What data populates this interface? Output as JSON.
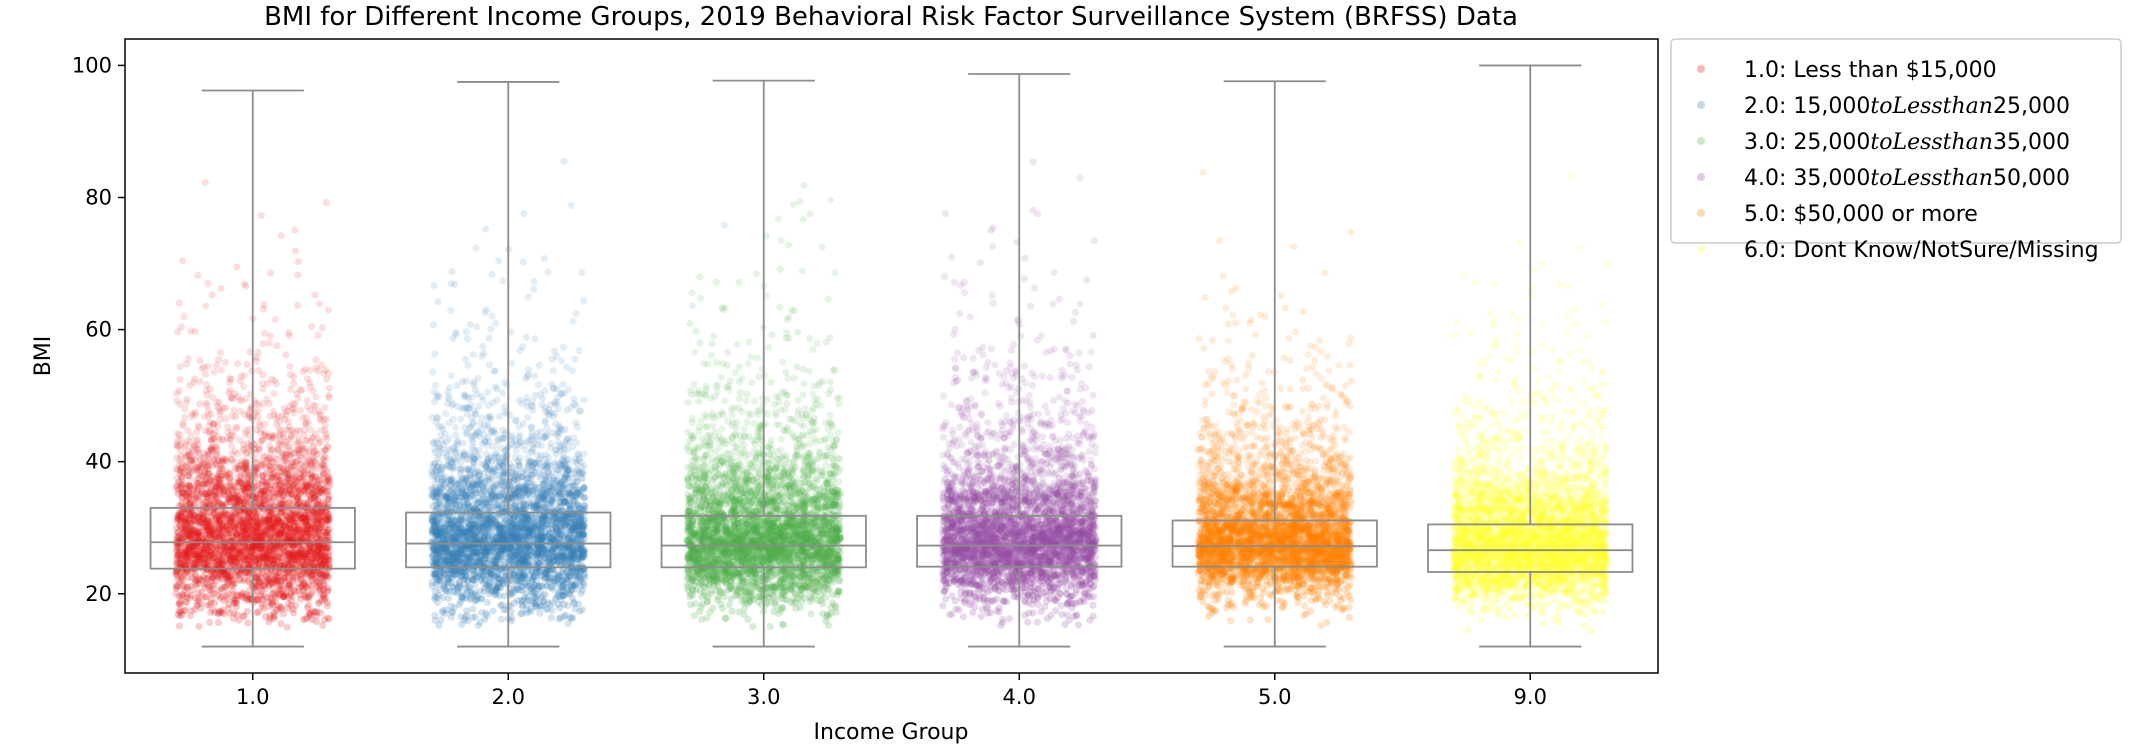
{
  "chart_data": {
    "type": "box-strip",
    "title": "BMI for Different Income Groups, 2019 Behavioral Risk Factor Surveillance System (BRFSS) Data",
    "xlabel": "Income Group",
    "ylabel": "BMI",
    "ylim": [
      8,
      104
    ],
    "yticks": [
      20,
      40,
      60,
      80,
      100
    ],
    "categories": [
      "1.0",
      "2.0",
      "3.0",
      "4.0",
      "5.0",
      "9.0"
    ],
    "boxes": [
      {
        "category": "1.0",
        "whisker_low": 12.0,
        "q1": 23.8,
        "median": 27.8,
        "q3": 33.0,
        "whisker_high": 96.2
      },
      {
        "category": "2.0",
        "whisker_low": 12.0,
        "q1": 24.0,
        "median": 27.6,
        "q3": 32.3,
        "whisker_high": 97.5
      },
      {
        "category": "3.0",
        "whisker_low": 12.0,
        "q1": 24.0,
        "median": 27.3,
        "q3": 31.8,
        "whisker_high": 97.7
      },
      {
        "category": "4.0",
        "whisker_low": 12.0,
        "q1": 24.1,
        "median": 27.3,
        "q3": 31.8,
        "whisker_high": 98.7
      },
      {
        "category": "5.0",
        "whisker_low": 12.0,
        "q1": 24.1,
        "median": 27.2,
        "q3": 31.1,
        "whisker_high": 97.6
      },
      {
        "category": "9.0",
        "whisker_low": 12.0,
        "q1": 23.3,
        "median": 26.6,
        "q3": 30.5,
        "whisker_high": 100.0
      }
    ],
    "series": [
      {
        "name": "1.0: Less than $15,000",
        "category": "1.0",
        "color": "#e41a1c"
      },
      {
        "name": "2.0: $15,000 to Less than $25,000",
        "category": "2.0",
        "color": "#377eb8"
      },
      {
        "name": "3.0: $25,000 to Less than $35,000",
        "category": "3.0",
        "color": "#4daf4a"
      },
      {
        "name": "4.0: $35,000 to Less than $50,000",
        "category": "4.0",
        "color": "#984ea3"
      },
      {
        "name": "5.0: $50,000 or more",
        "category": "5.0",
        "color": "#ff7f00"
      },
      {
        "name": "6.0: Dont Know/NotSure/Missing",
        "category": "9.0",
        "color": "#ffff33"
      }
    ],
    "legend": {
      "position": "outside-right",
      "entries": [
        {
          "prefix": "1.0: Less than $15,000",
          "italic": "",
          "suffix": ""
        },
        {
          "prefix": "2.0: 15,000",
          "italic": "toLessthan",
          "suffix": "25,000"
        },
        {
          "prefix": "3.0: 25,000",
          "italic": "toLessthan",
          "suffix": "35,000"
        },
        {
          "prefix": "4.0: 35,000",
          "italic": "toLessthan",
          "suffix": "50,000"
        },
        {
          "prefix": "5.0: $50,000 or more",
          "italic": "",
          "suffix": ""
        },
        {
          "prefix": "6.0: Dont Know/NotSure/Missing",
          "italic": "",
          "suffix": ""
        }
      ]
    },
    "grid": false,
    "point_alpha": 0.1
  }
}
